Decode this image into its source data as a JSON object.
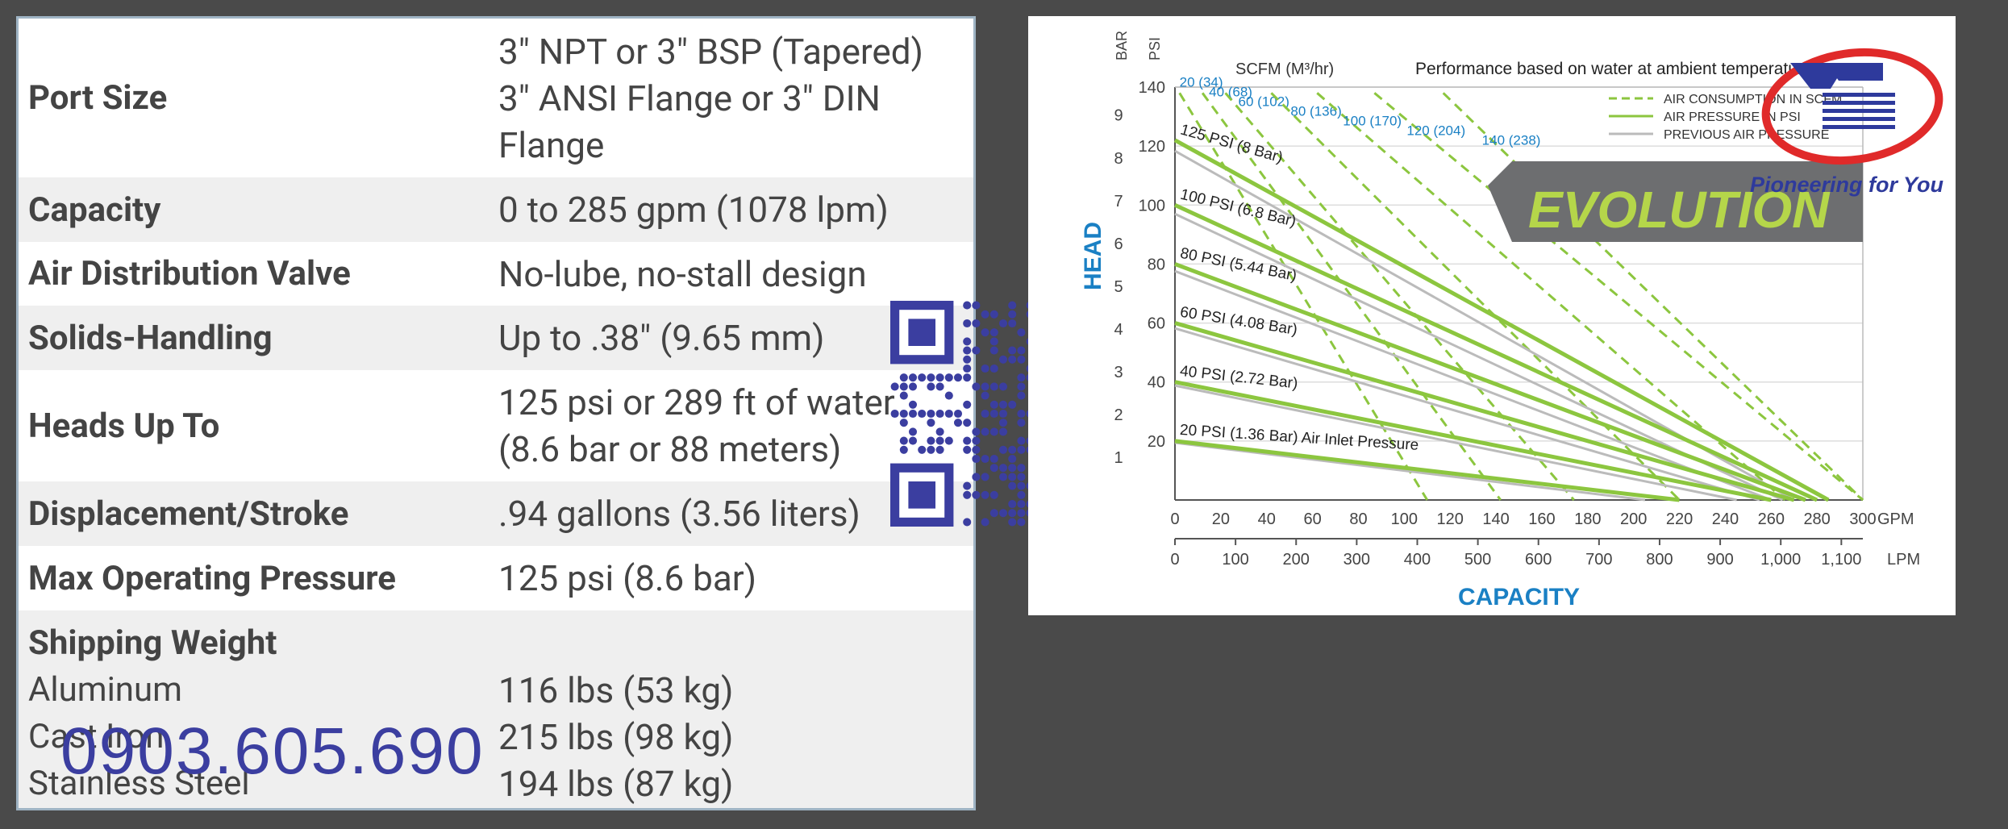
{
  "specs": [
    {
      "label": "Port Size",
      "values": [
        "3\" NPT or 3\" BSP (Tapered)",
        "3\" ANSI Flange or 3\" DIN",
        "Flange"
      ]
    },
    {
      "label": "Capacity",
      "values": [
        "0 to 285 gpm (1078 lpm)"
      ]
    },
    {
      "label": "Air Distribution Valve",
      "values": [
        "No-lube, no-stall design"
      ]
    },
    {
      "label": "Solids-Handling",
      "values": [
        "Up to .38\" (9.65 mm)"
      ]
    },
    {
      "label": "Heads Up To",
      "values": [
        "125 psi or 289 ft of water",
        "(8.6 bar or 88 meters)"
      ]
    },
    {
      "label": "Displacement/Stroke",
      "values": [
        ".94 gallons (3.56 liters)"
      ]
    },
    {
      "label": "Max Operating Pressure",
      "values": [
        "125 psi (8.6 bar)"
      ]
    }
  ],
  "shipping": {
    "header": "Shipping Weight",
    "items": [
      {
        "material": "Aluminum",
        "weight": "116 lbs (53 kg)"
      },
      {
        "material": "Cast Iron",
        "weight": "215 lbs (98 kg)"
      },
      {
        "material": "Stainless Steel",
        "weight": "194 lbs (87 kg)"
      }
    ]
  },
  "phone": "0903.605.690",
  "logo": {
    "tagline": "Pioneering for You"
  },
  "chart_data": {
    "type": "line",
    "note": "Performance based on water at ambient temperature.",
    "banner": "EVOLUTION",
    "ylabel": "HEAD",
    "xlabel": "CAPACITY",
    "y_unit_bar": "BAR",
    "y_unit_psi": "PSI",
    "scfm_label": "SCFM (M³/hr)",
    "x_gpm_unit": "GPM",
    "x_lpm_unit": "LPM",
    "x_gpm_ticks": [
      0,
      20,
      40,
      60,
      80,
      100,
      120,
      140,
      160,
      180,
      200,
      220,
      240,
      260,
      280,
      300
    ],
    "x_lpm_ticks": [
      "0",
      "100",
      "200",
      "300",
      "400",
      "500",
      "600",
      "700",
      "800",
      "900",
      "1,000",
      "1,100"
    ],
    "y_psi_ticks": [
      20,
      40,
      60,
      80,
      100,
      120,
      140
    ],
    "y_bar_ticks": [
      1,
      2,
      3,
      4,
      5,
      6,
      7,
      8,
      9
    ],
    "legend": [
      "AIR CONSUMPTION IN SCFM",
      "AIR PRESSURE IN PSI",
      "PREVIOUS AIR PRESSURE"
    ],
    "series": [
      {
        "name": "125 PSI (8 Bar)",
        "psi": 125,
        "x": [
          0,
          285
        ],
        "y": [
          122,
          0
        ]
      },
      {
        "name": "100 PSI (6.8 Bar)",
        "psi": 100,
        "x": [
          0,
          280
        ],
        "y": [
          100,
          0
        ]
      },
      {
        "name": "80 PSI (5.44 Bar)",
        "psi": 80,
        "x": [
          0,
          275
        ],
        "y": [
          80,
          0
        ]
      },
      {
        "name": "60 PSI (4.08 Bar)",
        "psi": 60,
        "x": [
          0,
          270
        ],
        "y": [
          60,
          0
        ]
      },
      {
        "name": "40 PSI (2.72 Bar)",
        "psi": 40,
        "x": [
          0,
          260
        ],
        "y": [
          40,
          0
        ]
      },
      {
        "name": "20 PSI (1.36 Bar) Air Inlet Pressure",
        "psi": 20,
        "x": [
          0,
          220
        ],
        "y": [
          20,
          0
        ]
      }
    ],
    "scfm_lines": [
      {
        "label": "20 (34)",
        "gpm_at_top": 0
      },
      {
        "label": "40 (68)",
        "gpm_at_top": 10
      },
      {
        "label": "60 (102)",
        "gpm_at_top": 20
      },
      {
        "label": "80 (136)",
        "gpm_at_top": 40
      },
      {
        "label": "100 (170)",
        "gpm_at_top": 60
      },
      {
        "label": "120 (204)",
        "gpm_at_top": 85
      },
      {
        "label": "140 (238)",
        "gpm_at_top": 115
      }
    ],
    "xlim": [
      0,
      300
    ],
    "ylim": [
      0,
      140
    ]
  },
  "colors": {
    "green": "#8cc63f",
    "blue": "#1a80c4",
    "navy": "#3b3ea0",
    "grey": "#bbbbbb"
  }
}
